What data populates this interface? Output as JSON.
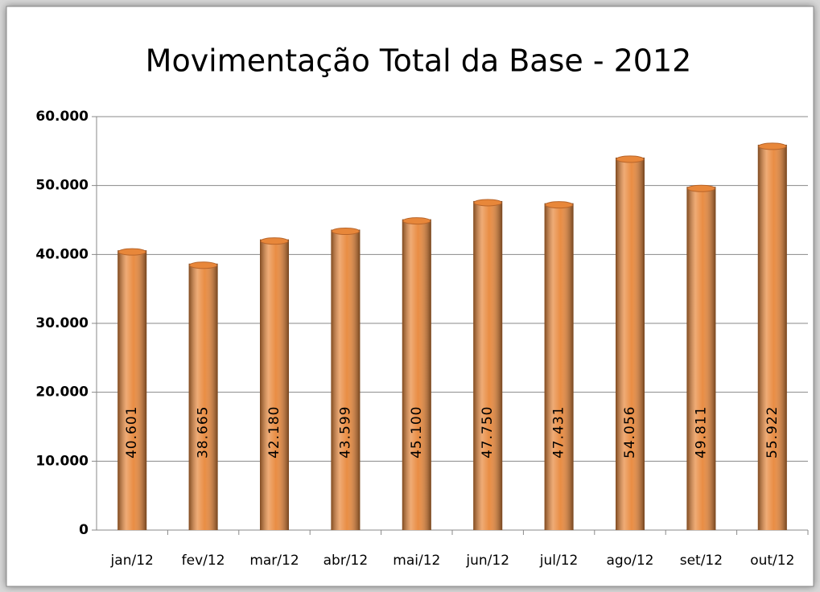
{
  "chart_data": {
    "type": "bar",
    "title": "Movimentação Total da Base - 2012",
    "categories": [
      "jan/12",
      "fev/12",
      "mar/12",
      "abr/12",
      "mai/12",
      "jun/12",
      "jul/12",
      "ago/12",
      "set/12",
      "out/12"
    ],
    "values": [
      40601,
      38665,
      42180,
      43599,
      45100,
      47750,
      47431,
      54056,
      49811,
      55922
    ],
    "value_labels": [
      "40.601",
      "38.665",
      "42.180",
      "43.599",
      "45.100",
      "47.750",
      "47.431",
      "54.056",
      "49.811",
      "55.922"
    ],
    "color": "#e8873a",
    "ylim": [
      0,
      60000
    ],
    "yticks": [
      0,
      {
        "value": 10000,
        "label": "10.000"
      },
      {
        "value": 20000,
        "label": "20.000"
      },
      {
        "value": 30000,
        "label": "30.000"
      },
      {
        "value": 40000,
        "label": "40.000"
      },
      {
        "value": 50000,
        "label": "50.000"
      },
      {
        "value": 60000,
        "label": "60.000"
      }
    ],
    "grid": true
  }
}
